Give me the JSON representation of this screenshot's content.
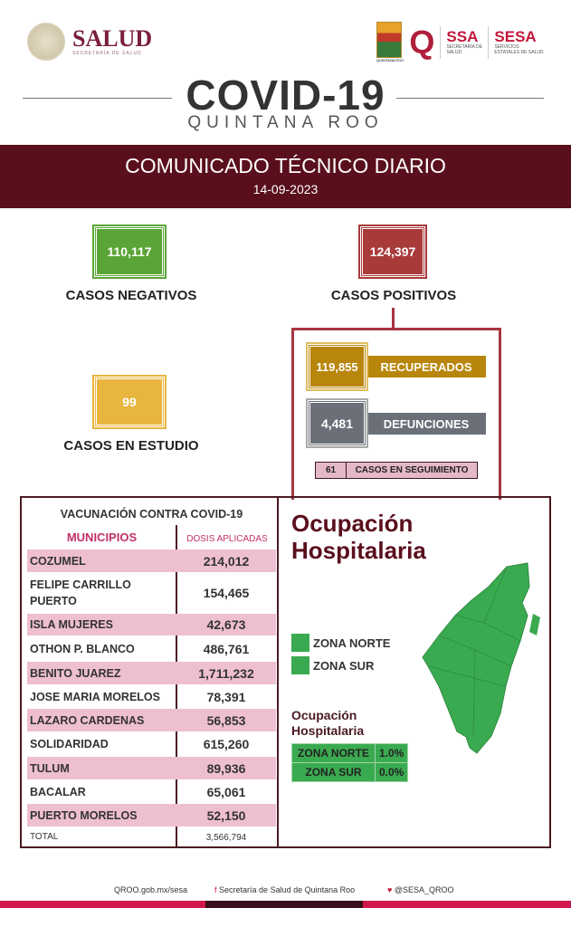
{
  "header": {
    "salud_title": "SALUD",
    "salud_subtitle": "SECRETARÍA DE SALUD",
    "qroo_caption": "QUINTANA ROO",
    "ssa": "SSA",
    "ssa_sub": "SECRETARÍA DE SALUD",
    "sesa": "SESA",
    "sesa_sub": "SERVICIOS ESTATALES DE SALUD",
    "covid_title": "COVID-19",
    "region": "QUINTANA ROO"
  },
  "banner": {
    "title": "COMUNICADO TÉCNICO DIARIO",
    "date": "14-09-2023"
  },
  "stats": {
    "negativos": {
      "value": "110,117",
      "label": "CASOS NEGATIVOS",
      "color": "#5aa536"
    },
    "positivos": {
      "value": "124,397",
      "label": "CASOS POSITIVOS",
      "color": "#a83a3a"
    },
    "estudio": {
      "value": "99",
      "label": "CASOS EN ESTUDIO",
      "color": "#e8b53e"
    },
    "recuperados": {
      "value": "119,855",
      "label": "RECUPERADOS",
      "color": "#b8860b"
    },
    "defunciones": {
      "value": "4,481",
      "label": "DEFUNCIONES",
      "color": "#6b7078"
    },
    "seguimiento": {
      "value": "61",
      "label": "CASOS EN SEGUIMIENTO"
    }
  },
  "vacunacion": {
    "title": "VACUNACIÓN CONTRA COVID-19",
    "col_municipios": "MUNICIPIOS",
    "col_dosis": "DOSIS APLICADAS",
    "rows": [
      {
        "m": "COZUMEL",
        "v": "214,012"
      },
      {
        "m": "FELIPE CARRILLO PUERTO",
        "v": "154,465"
      },
      {
        "m": "ISLA MUJERES",
        "v": "42,673"
      },
      {
        "m": "OTHON P. BLANCO",
        "v": "486,761"
      },
      {
        "m": "BENITO JUAREZ",
        "v": "1,711,232"
      },
      {
        "m": "JOSE MARIA MORELOS",
        "v": "78,391"
      },
      {
        "m": "LAZARO CARDENAS",
        "v": "56,853"
      },
      {
        "m": "SOLIDARIDAD",
        "v": "615,260"
      },
      {
        "m": "TULUM",
        "v": "89,936"
      },
      {
        "m": "BACALAR",
        "v": "65,061"
      },
      {
        "m": "PUERTO MORELOS",
        "v": "52,150"
      }
    ],
    "total_label": "TOTAL",
    "total_value": "3,566,794"
  },
  "ocupacion": {
    "title": "Ocupación Hospitalaria",
    "legend": [
      "ZONA NORTE",
      "ZONA SUR"
    ],
    "zone_color": "#3aaa50",
    "subtitle": "Ocupación Hospitalaria",
    "table": [
      {
        "zona": "ZONA NORTE",
        "pct": "1.0%"
      },
      {
        "zona": "ZONA SUR",
        "pct": "0.0%"
      }
    ]
  },
  "footer": {
    "web": "QROO.gob.mx/sesa",
    "facebook": "Secretaría de Salud de Quintana Roo",
    "twitter": "@SESA_QROO"
  }
}
